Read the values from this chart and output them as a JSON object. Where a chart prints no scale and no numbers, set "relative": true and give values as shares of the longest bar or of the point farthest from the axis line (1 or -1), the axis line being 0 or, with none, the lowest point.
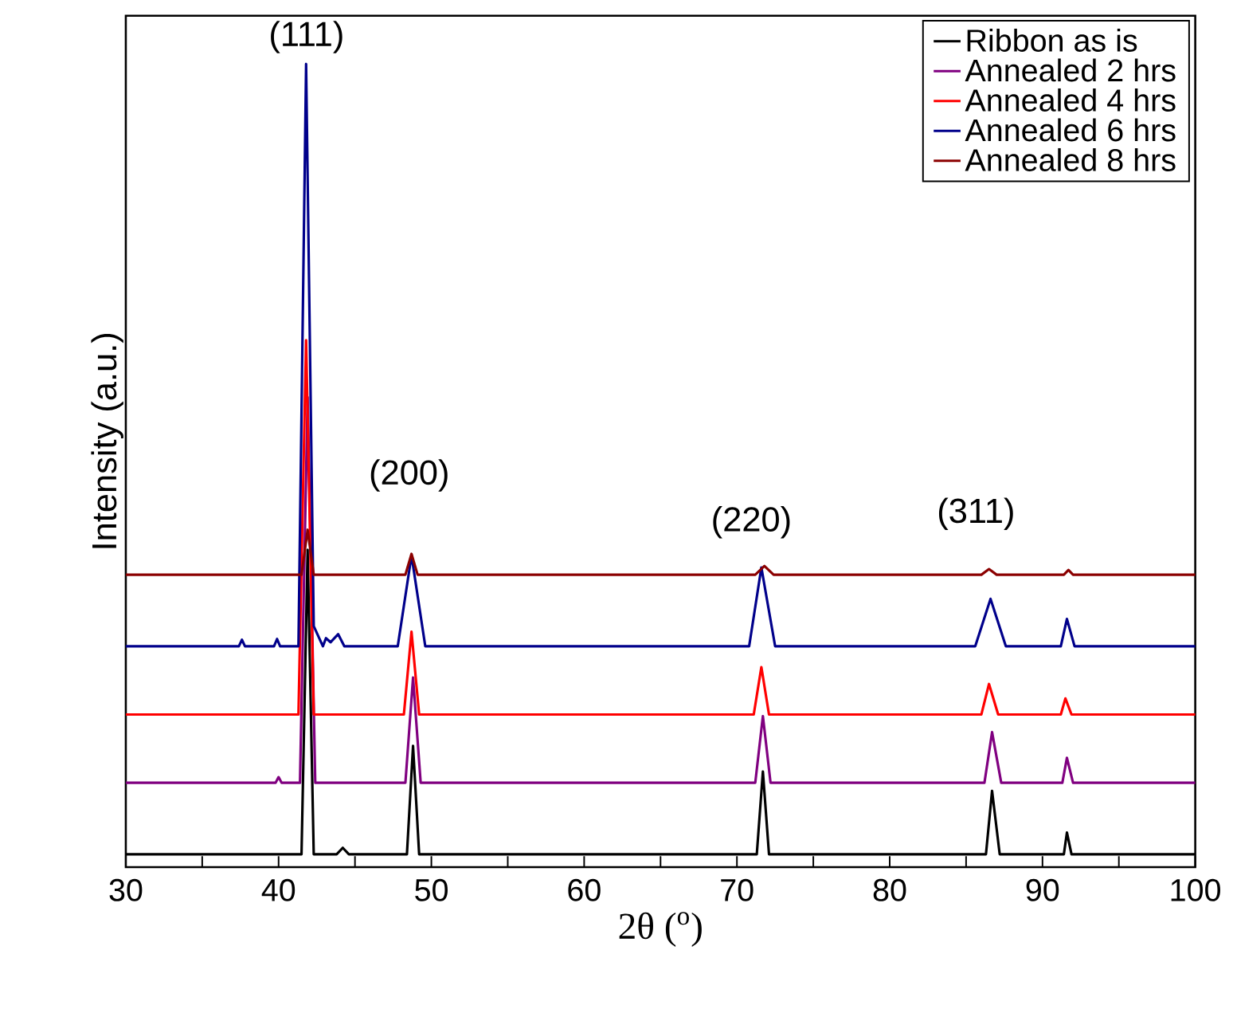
{
  "chart_data": {
    "type": "line",
    "relative": true,
    "xlabel": "2θ ($^{o}$)",
    "ylabel": "Intensity (a.u.)",
    "xlim": [
      30,
      100
    ],
    "xticks": [
      30,
      {
        "value": 35,
        "label": null
      },
      40,
      {
        "value": 45,
        "label": null
      },
      50,
      {
        "value": 55,
        "label": null
      },
      60,
      {
        "value": 65,
        "label": null
      },
      70,
      {
        "value": 75,
        "label": null
      },
      80,
      {
        "value": 85,
        "label": null
      },
      90,
      {
        "value": 95,
        "label": null
      },
      100
    ],
    "tick_labels": "x",
    "legend": "top right",
    "grid": false,
    "marker": "none",
    "line_style": "solid",
    "annotations": [
      "(111)",
      "(200)",
      "(220)",
      "(311)"
    ],
    "series": [
      {
        "name": "Ribbon as is",
        "color": "#000000",
        "x": [
          30,
          41.5,
          41.9,
          42.3,
          43.8,
          44.2,
          44.6,
          48.4,
          48.8,
          49.2,
          71.3,
          71.7,
          72.1,
          86.3,
          86.7,
          87.2,
          91.4,
          91.6,
          91.9,
          100
        ],
        "values": [
          0.016,
          0.016,
          0.395,
          0.016,
          0.016,
          0.024,
          0.016,
          0.016,
          0.151,
          0.016,
          0.016,
          0.119,
          0.016,
          0.016,
          0.095,
          0.016,
          0.016,
          0.043,
          0.016,
          0.016
        ]
      },
      {
        "name": "Annealed 2 hrs",
        "color": "#800080",
        "x": [
          30,
          39.8,
          40,
          40.2,
          41.4,
          41.9,
          42.4,
          48.3,
          48.8,
          49.3,
          71.2,
          71.7,
          72.2,
          86.2,
          86.7,
          87.3,
          91.3,
          91.6,
          92,
          100
        ],
        "values": [
          0.105,
          0.105,
          0.112,
          0.105,
          0.105,
          0.585,
          0.105,
          0.105,
          0.236,
          0.105,
          0.105,
          0.188,
          0.105,
          0.105,
          0.168,
          0.105,
          0.105,
          0.136,
          0.105,
          0.105
        ]
      },
      {
        "name": "Annealed 4 hrs",
        "color": "#ff0000",
        "x": [
          30,
          41.3,
          41.8,
          42.3,
          48.2,
          48.7,
          49.2,
          71.1,
          71.6,
          72.1,
          86.0,
          86.5,
          87.1,
          91.2,
          91.5,
          91.9,
          100
        ],
        "values": [
          0.19,
          0.19,
          0.656,
          0.19,
          0.19,
          0.293,
          0.19,
          0.19,
          0.249,
          0.19,
          0.19,
          0.228,
          0.19,
          0.19,
          0.21,
          0.19,
          0.19
        ]
      },
      {
        "name": "Annealed 6 hrs",
        "color": "#00008b",
        "x": [
          30,
          37.4,
          37.6,
          37.8,
          39.7,
          39.9,
          40.1,
          41.3,
          41.8,
          42.3,
          42.9,
          43.1,
          43.4,
          43.9,
          44.3,
          47.8,
          48.7,
          49.6,
          70.8,
          71.6,
          72.5,
          85.6,
          86.6,
          87.6,
          91.2,
          91.6,
          92.1,
          100
        ],
        "values": [
          0.275,
          0.275,
          0.283,
          0.275,
          0.275,
          0.284,
          0.275,
          0.275,
          1,
          0.3,
          0.275,
          0.285,
          0.28,
          0.29,
          0.275,
          0.275,
          0.388,
          0.275,
          0.275,
          0.373,
          0.275,
          0.275,
          0.334,
          0.275,
          0.275,
          0.309,
          0.275,
          0.275
        ]
      },
      {
        "name": "Annealed 8 hrs",
        "color": "#8b0000",
        "x": [
          30,
          41.5,
          41.9,
          42.3,
          48.3,
          48.7,
          49.1,
          71.2,
          71.8,
          72.4,
          86.0,
          86.5,
          87.0,
          91.4,
          91.7,
          92.0,
          100
        ],
        "values": [
          0.364,
          0.364,
          0.42,
          0.364,
          0.364,
          0.39,
          0.364,
          0.364,
          0.375,
          0.364,
          0.364,
          0.371,
          0.364,
          0.364,
          0.37,
          0.364,
          0.364
        ]
      }
    ]
  }
}
